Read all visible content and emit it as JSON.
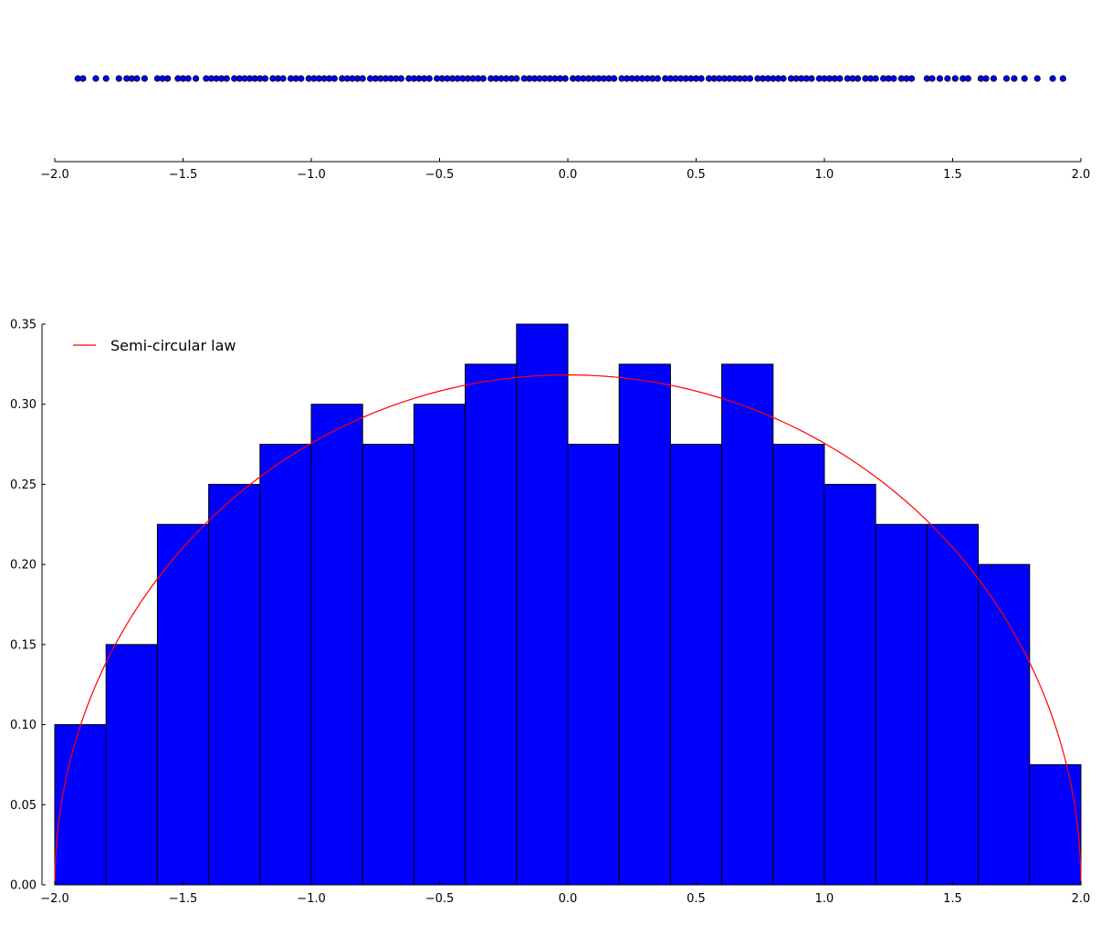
{
  "colors": {
    "bar_fill": "#0000ff",
    "bar_edge": "#000000",
    "point_fill": "#0000ff",
    "curve": "#ff0000",
    "axis": "#000000"
  },
  "chart_data": [
    {
      "type": "scatter",
      "title": "",
      "xlabel": "",
      "ylabel": "",
      "xlim": [
        -2.0,
        2.0
      ],
      "grid": false,
      "xticks": [
        -2.0,
        -1.5,
        -1.0,
        -0.5,
        0.0,
        0.5,
        1.0,
        1.5,
        2.0
      ],
      "xtick_labels": [
        "−2.0",
        "−1.5",
        "−1.0",
        "−0.5",
        "0.0",
        "0.5",
        "1.0",
        "1.5",
        "2.0"
      ],
      "x": [
        -1.91,
        -1.89,
        -1.84,
        -1.8,
        -1.75,
        -1.72,
        -1.7,
        -1.68,
        -1.65,
        -1.6,
        -1.58,
        -1.56,
        -1.52,
        -1.5,
        -1.48,
        -1.45,
        -1.41,
        -1.39,
        -1.37,
        -1.35,
        -1.33,
        -1.3,
        -1.28,
        -1.26,
        -1.24,
        -1.22,
        -1.2,
        -1.18,
        -1.15,
        -1.13,
        -1.11,
        -1.08,
        -1.06,
        -1.04,
        -1.01,
        -0.99,
        -0.97,
        -0.95,
        -0.93,
        -0.91,
        -0.88,
        -0.86,
        -0.84,
        -0.82,
        -0.8,
        -0.77,
        -0.75,
        -0.73,
        -0.71,
        -0.69,
        -0.67,
        -0.65,
        -0.62,
        -0.6,
        -0.58,
        -0.56,
        -0.54,
        -0.51,
        -0.49,
        -0.47,
        -0.45,
        -0.43,
        -0.41,
        -0.39,
        -0.37,
        -0.35,
        -0.33,
        -0.3,
        -0.28,
        -0.26,
        -0.24,
        -0.22,
        -0.2,
        -0.17,
        -0.15,
        -0.13,
        -0.11,
        -0.09,
        -0.07,
        -0.05,
        -0.03,
        -0.01,
        0.02,
        0.04,
        0.06,
        0.08,
        0.1,
        0.12,
        0.14,
        0.16,
        0.18,
        0.21,
        0.23,
        0.25,
        0.27,
        0.29,
        0.31,
        0.33,
        0.35,
        0.38,
        0.4,
        0.42,
        0.44,
        0.46,
        0.48,
        0.5,
        0.52,
        0.55,
        0.57,
        0.59,
        0.61,
        0.63,
        0.65,
        0.67,
        0.69,
        0.71,
        0.74,
        0.76,
        0.78,
        0.8,
        0.82,
        0.84,
        0.87,
        0.89,
        0.91,
        0.93,
        0.95,
        0.98,
        1.0,
        1.02,
        1.04,
        1.06,
        1.09,
        1.11,
        1.13,
        1.16,
        1.18,
        1.2,
        1.23,
        1.25,
        1.27,
        1.3,
        1.32,
        1.34,
        1.4,
        1.42,
        1.45,
        1.48,
        1.51,
        1.54,
        1.56,
        1.61,
        1.63,
        1.66,
        1.71,
        1.74,
        1.78,
        1.83,
        1.89,
        1.93
      ],
      "y": 0
    },
    {
      "type": "bar",
      "title": "",
      "xlabel": "",
      "ylabel": "",
      "xlim": [
        -2.0,
        2.0
      ],
      "ylim": [
        0.0,
        0.35
      ],
      "grid": false,
      "legend": {
        "placement": "upper-left",
        "entries": [
          "Semi-circular law"
        ]
      },
      "xticks": [
        -2.0,
        -1.5,
        -1.0,
        -0.5,
        0.0,
        0.5,
        1.0,
        1.5,
        2.0
      ],
      "xtick_labels": [
        "−2.0",
        "−1.5",
        "−1.0",
        "−0.5",
        "0.0",
        "0.5",
        "1.0",
        "1.5",
        "2.0"
      ],
      "yticks": [
        0.0,
        0.05,
        0.1,
        0.15,
        0.2,
        0.25,
        0.3,
        0.35
      ],
      "ytick_labels": [
        "0.00",
        "0.05",
        "0.10",
        "0.15",
        "0.20",
        "0.25",
        "0.30",
        "0.35"
      ],
      "bin_edges": [
        -2.0,
        -1.8,
        -1.6,
        -1.4,
        -1.2,
        -1.0,
        -0.8,
        -0.6,
        -0.4,
        -0.2,
        0.0,
        0.2,
        0.4,
        0.6,
        0.8,
        1.0,
        1.2,
        1.4,
        1.6,
        1.8,
        2.0
      ],
      "values": [
        0.1,
        0.15,
        0.225,
        0.25,
        0.275,
        0.3,
        0.275,
        0.3,
        0.325,
        0.35,
        0.275,
        0.325,
        0.275,
        0.325,
        0.275,
        0.25,
        0.225,
        0.225,
        0.2,
        0.075
      ],
      "series": [
        {
          "name": "Semi-circular law",
          "type": "line",
          "function": "semicircle",
          "domain": [
            -2.0,
            2.0
          ]
        }
      ]
    }
  ]
}
